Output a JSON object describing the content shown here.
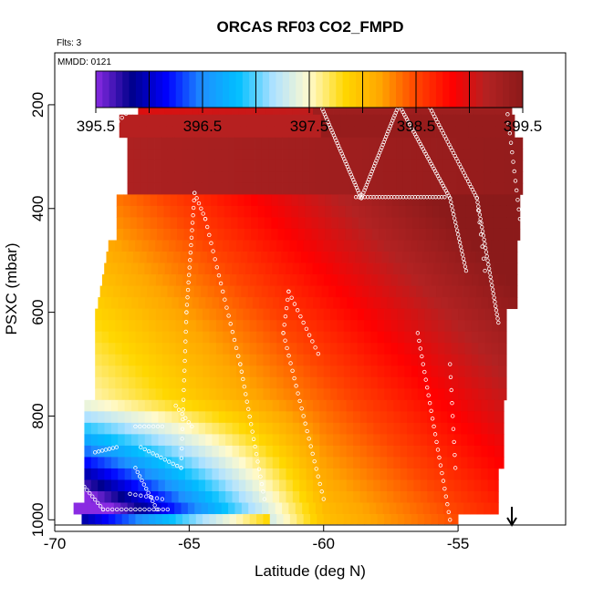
{
  "chart_data": {
    "type": "heatmap",
    "title": "ORCAS RF03 CO2_FMPD",
    "subtitle": "Flts: 3",
    "annotation": "MMDD: 0121",
    "xlabel": "Latitude (deg N)",
    "ylabel": "PSXC (mbar)",
    "xlim": [
      -70,
      -51
    ],
    "ylim": [
      1010,
      100
    ],
    "x_ticks": [
      -70,
      -65,
      -60,
      -55
    ],
    "x_tick_labels": [
      "-70",
      "-65",
      "-60",
      "-55"
    ],
    "y_ticks": [
      200,
      400,
      600,
      800,
      1000
    ],
    "y_tick_labels": [
      "200",
      "400",
      "600",
      "800",
      "1000"
    ],
    "colorbar": {
      "min": 395.5,
      "max": 399.5,
      "ticks": [
        395.5,
        396.5,
        397.5,
        398.5,
        399.5
      ],
      "tick_labels": [
        "395.5",
        "396.5",
        "397.5",
        "398.5",
        "399.5"
      ],
      "colors": [
        "#8a2be2",
        "#00008b",
        "#0000ff",
        "#1e90ff",
        "#00bfff",
        "#b0e2ff",
        "#fffacd",
        "#ffd700",
        "#ffa500",
        "#ff4500",
        "#ff0000",
        "#b22222",
        "#8b1a1a"
      ]
    },
    "grid_value_description": "CO2_FMPD (ppm) binned by latitude and pressure",
    "arrow_marker_latitude": -53
  }
}
